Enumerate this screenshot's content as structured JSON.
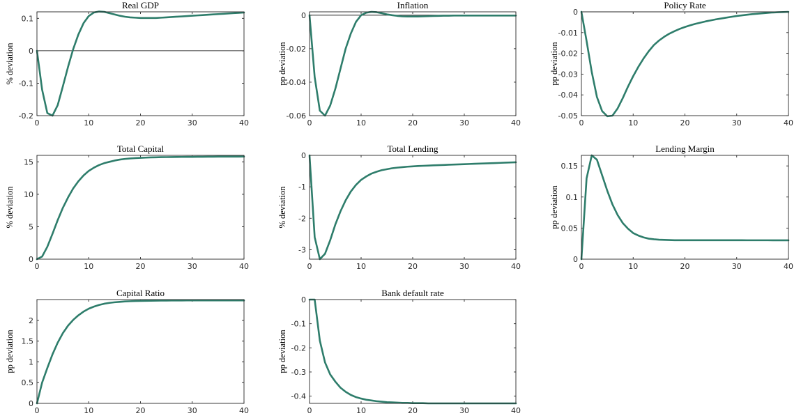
{
  "line_color": "#2e7d6b",
  "chart_data": [
    {
      "type": "line",
      "title": "Real GDP",
      "xlabel": "",
      "ylabel": "% deviation",
      "xlim": [
        0,
        40
      ],
      "ylim": [
        -0.2,
        0.12
      ],
      "xticks": [
        0,
        10,
        20,
        30,
        40
      ],
      "yticks": [
        -0.2,
        -0.1,
        0,
        0.1
      ],
      "zero_line": true,
      "x": [
        0,
        1,
        2,
        3,
        4,
        5,
        6,
        7,
        8,
        9,
        10,
        11,
        12,
        13,
        14,
        15,
        16,
        17,
        18,
        19,
        20,
        21,
        22,
        23,
        24,
        25,
        26,
        27,
        28,
        29,
        30,
        31,
        32,
        33,
        34,
        35,
        36,
        37,
        38,
        39,
        40
      ],
      "values": [
        0,
        -0.12,
        -0.192,
        -0.2,
        -0.168,
        -0.11,
        -0.05,
        0.005,
        0.05,
        0.085,
        0.107,
        0.118,
        0.121,
        0.12,
        0.116,
        0.112,
        0.108,
        0.105,
        0.103,
        0.102,
        0.101,
        0.101,
        0.101,
        0.101,
        0.102,
        0.103,
        0.104,
        0.105,
        0.106,
        0.107,
        0.108,
        0.109,
        0.11,
        0.111,
        0.112,
        0.113,
        0.114,
        0.115,
        0.116,
        0.117,
        0.118
      ]
    },
    {
      "type": "line",
      "title": "Inflation",
      "xlabel": "",
      "ylabel": "pp deviation",
      "xlim": [
        0,
        40
      ],
      "ylim": [
        -0.06,
        0.002
      ],
      "xticks": [
        0,
        10,
        20,
        30,
        40
      ],
      "yticks": [
        -0.06,
        -0.04,
        -0.02,
        0
      ],
      "zero_line": true,
      "x": [
        0,
        1,
        2,
        3,
        4,
        5,
        6,
        7,
        8,
        9,
        10,
        11,
        12,
        13,
        14,
        15,
        16,
        17,
        18,
        19,
        20,
        21,
        22,
        23,
        24,
        25,
        26,
        27,
        28,
        29,
        30,
        31,
        32,
        33,
        34,
        35,
        36,
        37,
        38,
        39,
        40
      ],
      "values": [
        0,
        -0.037,
        -0.057,
        -0.06,
        -0.054,
        -0.044,
        -0.032,
        -0.02,
        -0.011,
        -0.004,
        0,
        0.0015,
        0.002,
        0.0018,
        0.0012,
        0.0005,
        0,
        -0.0004,
        -0.0007,
        -0.0008,
        -0.0008,
        -0.0008,
        -0.0007,
        -0.0006,
        -0.0005,
        -0.0004,
        -0.0003,
        -0.0003,
        -0.0002,
        -0.0002,
        -0.0002,
        -0.0002,
        -0.0002,
        -0.0002,
        -0.0002,
        -0.0002,
        -0.0002,
        -0.0002,
        -0.0002,
        -0.0002,
        -0.0002
      ]
    },
    {
      "type": "line",
      "title": "Policy Rate",
      "xlabel": "",
      "ylabel": "pp deviation",
      "xlim": [
        0,
        40
      ],
      "ylim": [
        -0.05,
        0
      ],
      "xticks": [
        0,
        10,
        20,
        30,
        40
      ],
      "yticks": [
        -0.05,
        -0.04,
        -0.03,
        -0.02,
        -0.01,
        0
      ],
      "zero_line": true,
      "x": [
        0,
        1,
        2,
        3,
        4,
        5,
        6,
        7,
        8,
        9,
        10,
        11,
        12,
        13,
        14,
        15,
        16,
        17,
        18,
        19,
        20,
        21,
        22,
        23,
        24,
        25,
        26,
        27,
        28,
        29,
        30,
        31,
        32,
        33,
        34,
        35,
        36,
        37,
        38,
        39,
        40
      ],
      "values": [
        0,
        -0.014,
        -0.029,
        -0.041,
        -0.0478,
        -0.0503,
        -0.05,
        -0.0465,
        -0.0415,
        -0.036,
        -0.031,
        -0.0265,
        -0.0225,
        -0.019,
        -0.016,
        -0.0138,
        -0.012,
        -0.0105,
        -0.0093,
        -0.0082,
        -0.0073,
        -0.0065,
        -0.0058,
        -0.0052,
        -0.0046,
        -0.0041,
        -0.0036,
        -0.0032,
        -0.0028,
        -0.0024,
        -0.002,
        -0.0017,
        -0.0014,
        -0.0011,
        -0.0009,
        -0.0007,
        -0.0005,
        -0.0003,
        -0.0002,
        -0.0001,
        0
      ]
    },
    {
      "type": "line",
      "title": "Total Capital",
      "xlabel": "",
      "ylabel": "% deviation",
      "xlim": [
        0,
        40
      ],
      "ylim": [
        0,
        16
      ],
      "xticks": [
        0,
        10,
        20,
        30,
        40
      ],
      "yticks": [
        0,
        5,
        10,
        15
      ],
      "zero_line": false,
      "x": [
        0,
        1,
        2,
        3,
        4,
        5,
        6,
        7,
        8,
        9,
        10,
        11,
        12,
        13,
        14,
        15,
        16,
        17,
        18,
        19,
        20,
        21,
        22,
        23,
        24,
        25,
        26,
        27,
        28,
        29,
        30,
        31,
        32,
        33,
        34,
        35,
        36,
        37,
        38,
        39,
        40
      ],
      "values": [
        0,
        0.4,
        1.9,
        3.9,
        6.0,
        7.9,
        9.5,
        10.9,
        12.0,
        12.9,
        13.6,
        14.1,
        14.5,
        14.8,
        15.0,
        15.2,
        15.35,
        15.45,
        15.52,
        15.58,
        15.62,
        15.65,
        15.68,
        15.7,
        15.72,
        15.73,
        15.74,
        15.75,
        15.76,
        15.77,
        15.77,
        15.78,
        15.78,
        15.79,
        15.79,
        15.8,
        15.8,
        15.8,
        15.81,
        15.81,
        15.82
      ]
    },
    {
      "type": "line",
      "title": "Total Lending",
      "xlabel": "",
      "ylabel": "% deviation",
      "xlim": [
        0,
        40
      ],
      "ylim": [
        -3.3,
        0
      ],
      "xticks": [
        0,
        10,
        20,
        30,
        40
      ],
      "yticks": [
        -3,
        -2,
        -1,
        0
      ],
      "zero_line": false,
      "x": [
        0,
        1,
        2,
        3,
        4,
        5,
        6,
        7,
        8,
        9,
        10,
        11,
        12,
        13,
        14,
        15,
        16,
        17,
        18,
        19,
        20,
        21,
        22,
        23,
        24,
        25,
        26,
        27,
        28,
        29,
        30,
        31,
        32,
        33,
        34,
        35,
        36,
        37,
        38,
        39,
        40
      ],
      "values": [
        0,
        -2.6,
        -3.3,
        -3.13,
        -2.7,
        -2.2,
        -1.78,
        -1.43,
        -1.15,
        -0.94,
        -0.78,
        -0.67,
        -0.58,
        -0.52,
        -0.47,
        -0.44,
        -0.41,
        -0.39,
        -0.375,
        -0.36,
        -0.35,
        -0.34,
        -0.332,
        -0.325,
        -0.318,
        -0.311,
        -0.305,
        -0.298,
        -0.292,
        -0.286,
        -0.28,
        -0.274,
        -0.268,
        -0.262,
        -0.256,
        -0.25,
        -0.244,
        -0.238,
        -0.232,
        -0.226,
        -0.22
      ]
    },
    {
      "type": "line",
      "title": "Lending Margin",
      "xlabel": "",
      "ylabel": "pp deviation",
      "xlim": [
        0,
        40
      ],
      "ylim": [
        0,
        0.167
      ],
      "xticks": [
        0,
        10,
        20,
        30,
        40
      ],
      "yticks": [
        0,
        0.05,
        0.1,
        0.15
      ],
      "zero_line": false,
      "x": [
        0,
        1,
        2,
        3,
        4,
        5,
        6,
        7,
        8,
        9,
        10,
        11,
        12,
        13,
        14,
        15,
        16,
        17,
        18,
        19,
        20,
        21,
        22,
        23,
        24,
        25,
        26,
        27,
        28,
        29,
        30,
        31,
        32,
        33,
        34,
        35,
        36,
        37,
        38,
        39,
        40
      ],
      "values": [
        0,
        0.13,
        0.167,
        0.16,
        0.135,
        0.11,
        0.088,
        0.071,
        0.058,
        0.049,
        0.042,
        0.038,
        0.035,
        0.033,
        0.032,
        0.0313,
        0.031,
        0.0307,
        0.0305,
        0.0305,
        0.0305,
        0.0305,
        0.0305,
        0.0305,
        0.0305,
        0.0305,
        0.0305,
        0.0305,
        0.0305,
        0.0305,
        0.0305,
        0.0305,
        0.0304,
        0.0304,
        0.0304,
        0.0304,
        0.0304,
        0.0303,
        0.0303,
        0.0303,
        0.0303
      ]
    },
    {
      "type": "line",
      "title": "Capital Ratio",
      "xlabel": "",
      "ylabel": "pp deviation",
      "xlim": [
        0,
        40
      ],
      "ylim": [
        0,
        2.5
      ],
      "xticks": [
        0,
        10,
        20,
        30,
        40
      ],
      "yticks": [
        0,
        0.5,
        1,
        1.5,
        2
      ],
      "zero_line": false,
      "x": [
        0,
        1,
        2,
        3,
        4,
        5,
        6,
        7,
        8,
        9,
        10,
        11,
        12,
        13,
        14,
        15,
        16,
        17,
        18,
        19,
        20,
        21,
        22,
        23,
        24,
        25,
        26,
        27,
        28,
        29,
        30,
        31,
        32,
        33,
        34,
        35,
        36,
        37,
        38,
        39,
        40
      ],
      "values": [
        0,
        0.5,
        0.85,
        1.18,
        1.46,
        1.69,
        1.87,
        2.01,
        2.12,
        2.21,
        2.28,
        2.33,
        2.37,
        2.4,
        2.42,
        2.435,
        2.445,
        2.455,
        2.46,
        2.465,
        2.468,
        2.47,
        2.472,
        2.474,
        2.475,
        2.476,
        2.477,
        2.478,
        2.478,
        2.479,
        2.479,
        2.48,
        2.48,
        2.48,
        2.48,
        2.48,
        2.48,
        2.48,
        2.48,
        2.48,
        2.48
      ]
    },
    {
      "type": "line",
      "title": "Bank default rate",
      "xlabel": "",
      "ylabel": "pp deviation",
      "xlim": [
        0,
        40
      ],
      "ylim": [
        -0.43,
        0
      ],
      "xticks": [
        0,
        10,
        20,
        30,
        40
      ],
      "yticks": [
        -0.4,
        -0.3,
        -0.2,
        -0.1,
        0
      ],
      "zero_line": false,
      "x": [
        0,
        1,
        2,
        3,
        4,
        5,
        6,
        7,
        8,
        9,
        10,
        11,
        12,
        13,
        14,
        15,
        16,
        17,
        18,
        19,
        20,
        21,
        22,
        23,
        24,
        25,
        26,
        27,
        28,
        29,
        30,
        31,
        32,
        33,
        34,
        35,
        36,
        37,
        38,
        39,
        40
      ],
      "values": [
        0,
        0,
        -0.17,
        -0.26,
        -0.31,
        -0.34,
        -0.365,
        -0.382,
        -0.395,
        -0.404,
        -0.41,
        -0.415,
        -0.418,
        -0.421,
        -0.423,
        -0.425,
        -0.426,
        -0.427,
        -0.428,
        -0.428,
        -0.429,
        -0.429,
        -0.429,
        -0.43,
        -0.43,
        -0.43,
        -0.43,
        -0.43,
        -0.43,
        -0.43,
        -0.43,
        -0.43,
        -0.43,
        -0.43,
        -0.43,
        -0.43,
        -0.43,
        -0.43,
        -0.43,
        -0.43,
        -0.43
      ]
    }
  ]
}
